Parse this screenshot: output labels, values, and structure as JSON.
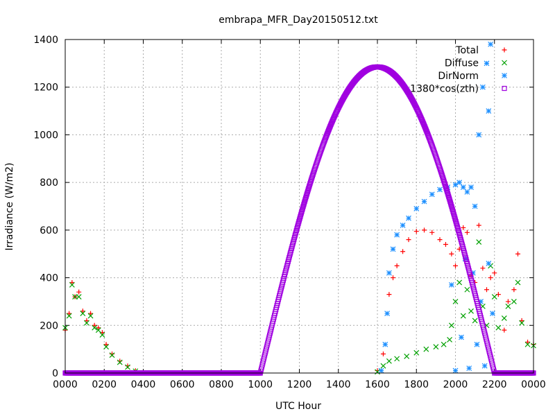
{
  "chart_data": {
    "type": "scatter",
    "title": "embrapa_MFR_Day20150512.txt",
    "xlabel": "UTC Hour",
    "ylabel": "Irradiance (W/m2)",
    "xlim": [
      0,
      24
    ],
    "ylim": [
      0,
      1400
    ],
    "grid": true,
    "legend_position": "top-right",
    "x_ticks": [
      {
        "value": 0,
        "label": "0000"
      },
      {
        "value": 2,
        "label": "0200"
      },
      {
        "value": 4,
        "label": "0400"
      },
      {
        "value": 6,
        "label": "0600"
      },
      {
        "value": 8,
        "label": "0800"
      },
      {
        "value": 10,
        "label": "1000"
      },
      {
        "value": 12,
        "label": "1200"
      },
      {
        "value": 14,
        "label": "1400"
      },
      {
        "value": 16,
        "label": "1600"
      },
      {
        "value": 18,
        "label": "1800"
      },
      {
        "value": 20,
        "label": "2000"
      },
      {
        "value": 22,
        "label": "2200"
      },
      {
        "value": 24,
        "label": "0000"
      }
    ],
    "y_ticks": [
      0,
      200,
      400,
      600,
      800,
      1000,
      1200,
      1400
    ],
    "series": [
      {
        "name": "Total",
        "color": "#ff0000",
        "marker": "plus",
        "points": [
          [
            0.0,
            180
          ],
          [
            0.2,
            250
          ],
          [
            0.35,
            380
          ],
          [
            0.5,
            320
          ],
          [
            0.7,
            340
          ],
          [
            0.9,
            260
          ],
          [
            1.1,
            220
          ],
          [
            1.3,
            250
          ],
          [
            1.5,
            200
          ],
          [
            1.7,
            190
          ],
          [
            1.9,
            170
          ],
          [
            2.1,
            120
          ],
          [
            2.4,
            80
          ],
          [
            2.8,
            50
          ],
          [
            3.2,
            30
          ],
          [
            3.6,
            10
          ],
          [
            3.8,
            0
          ],
          [
            16.0,
            10
          ],
          [
            16.3,
            80
          ],
          [
            16.6,
            330
          ],
          [
            16.8,
            400
          ],
          [
            17.0,
            450
          ],
          [
            17.3,
            510
          ],
          [
            17.6,
            560
          ],
          [
            18.0,
            595
          ],
          [
            18.4,
            600
          ],
          [
            18.8,
            590
          ],
          [
            19.2,
            560
          ],
          [
            19.5,
            540
          ],
          [
            19.8,
            500
          ],
          [
            20.0,
            450
          ],
          [
            20.2,
            520
          ],
          [
            20.4,
            610
          ],
          [
            20.6,
            590
          ],
          [
            20.8,
            410
          ],
          [
            21.0,
            380
          ],
          [
            21.2,
            620
          ],
          [
            21.4,
            440
          ],
          [
            21.6,
            350
          ],
          [
            21.8,
            400
          ],
          [
            22.0,
            420
          ],
          [
            22.2,
            330
          ],
          [
            22.5,
            180
          ],
          [
            22.7,
            300
          ],
          [
            23.0,
            350
          ],
          [
            23.2,
            500
          ],
          [
            23.4,
            220
          ],
          [
            23.7,
            130
          ],
          [
            24.0,
            120
          ]
        ]
      },
      {
        "name": "Diffuse",
        "color": "#00a000",
        "marker": "cross",
        "points": [
          [
            0.0,
            190
          ],
          [
            0.2,
            240
          ],
          [
            0.35,
            370
          ],
          [
            0.5,
            320
          ],
          [
            0.7,
            320
          ],
          [
            0.9,
            250
          ],
          [
            1.1,
            210
          ],
          [
            1.3,
            240
          ],
          [
            1.5,
            190
          ],
          [
            1.7,
            180
          ],
          [
            1.9,
            160
          ],
          [
            2.1,
            110
          ],
          [
            2.4,
            75
          ],
          [
            2.8,
            45
          ],
          [
            3.2,
            25
          ],
          [
            3.6,
            8
          ],
          [
            3.8,
            0
          ],
          [
            16.0,
            5
          ],
          [
            16.3,
            30
          ],
          [
            16.6,
            50
          ],
          [
            17.0,
            60
          ],
          [
            17.5,
            70
          ],
          [
            18.0,
            85
          ],
          [
            18.5,
            100
          ],
          [
            19.0,
            110
          ],
          [
            19.4,
            120
          ],
          [
            19.7,
            140
          ],
          [
            19.8,
            200
          ],
          [
            20.0,
            300
          ],
          [
            20.2,
            380
          ],
          [
            20.4,
            240
          ],
          [
            20.6,
            350
          ],
          [
            20.8,
            260
          ],
          [
            21.0,
            220
          ],
          [
            21.2,
            550
          ],
          [
            21.4,
            280
          ],
          [
            21.6,
            200
          ],
          [
            21.8,
            450
          ],
          [
            22.0,
            320
          ],
          [
            22.2,
            190
          ],
          [
            22.5,
            230
          ],
          [
            22.7,
            280
          ],
          [
            23.0,
            300
          ],
          [
            23.2,
            380
          ],
          [
            23.4,
            210
          ],
          [
            23.7,
            120
          ],
          [
            24.0,
            115
          ]
        ]
      },
      {
        "name": "DirNorm",
        "color": "#1e90ff",
        "marker": "star",
        "points": [
          [
            16.2,
            10
          ],
          [
            16.4,
            120
          ],
          [
            16.5,
            250
          ],
          [
            16.6,
            420
          ],
          [
            16.8,
            520
          ],
          [
            17.0,
            580
          ],
          [
            17.3,
            620
          ],
          [
            17.6,
            650
          ],
          [
            18.0,
            690
          ],
          [
            18.4,
            720
          ],
          [
            18.8,
            750
          ],
          [
            19.2,
            770
          ],
          [
            19.6,
            780
          ],
          [
            20.0,
            790
          ],
          [
            20.2,
            800
          ],
          [
            20.4,
            780
          ],
          [
            20.6,
            760
          ],
          [
            20.8,
            780
          ],
          [
            21.0,
            700
          ],
          [
            21.2,
            1000
          ],
          [
            21.4,
            1200
          ],
          [
            21.6,
            1300
          ],
          [
            21.7,
            1100
          ],
          [
            21.8,
            1380
          ],
          [
            19.8,
            370
          ],
          [
            20.0,
            10
          ],
          [
            20.3,
            150
          ],
          [
            20.5,
            480
          ],
          [
            20.7,
            20
          ],
          [
            20.9,
            420
          ],
          [
            21.1,
            120
          ],
          [
            21.3,
            300
          ],
          [
            21.5,
            30
          ],
          [
            21.7,
            460
          ],
          [
            21.9,
            250
          ],
          [
            22.0,
            0
          ]
        ]
      },
      {
        "name": "1380*cos(zth)",
        "color": "#a000e0",
        "marker": "square",
        "curve": {
          "type": "cosine_arc",
          "rise_hour": 10.0,
          "peak_hour": 16.0,
          "set_hour": 22.0,
          "peak_value": 1285
        }
      }
    ]
  }
}
